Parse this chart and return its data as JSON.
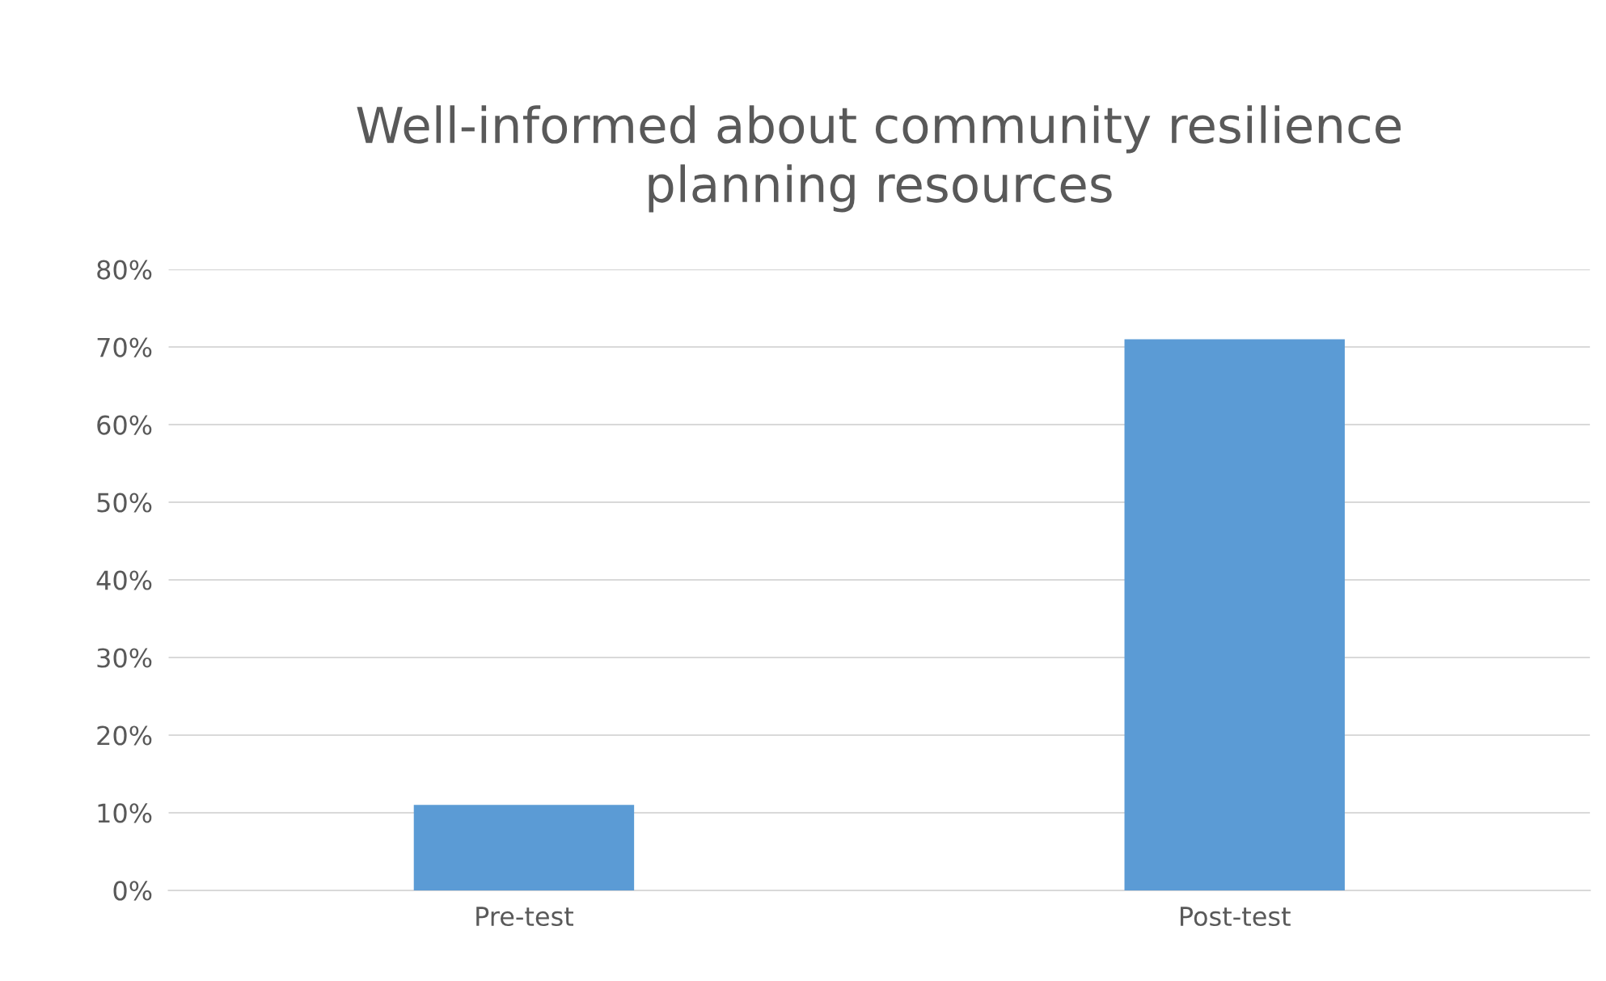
{
  "chart_data": {
    "type": "bar",
    "title": "Well-informed about community resilience\nplanning resources",
    "categories": [
      "Pre-test",
      "Post-test"
    ],
    "series": [
      {
        "color": "#5b9bd5",
        "values": [
          11,
          71
        ]
      }
    ],
    "ylim": [
      0,
      80
    ],
    "yticks": [
      {
        "value": 0,
        "label": "0%"
      },
      {
        "value": 10,
        "label": "10%"
      },
      {
        "value": 20,
        "label": "20%"
      },
      {
        "value": 30,
        "label": "30%"
      },
      {
        "value": 40,
        "label": "40%"
      },
      {
        "value": 50,
        "label": "50%"
      },
      {
        "value": 60,
        "label": "60%"
      },
      {
        "value": 70,
        "label": "70%"
      },
      {
        "value": 80,
        "label": "80%"
      }
    ],
    "grid": "y",
    "legend": false
  }
}
